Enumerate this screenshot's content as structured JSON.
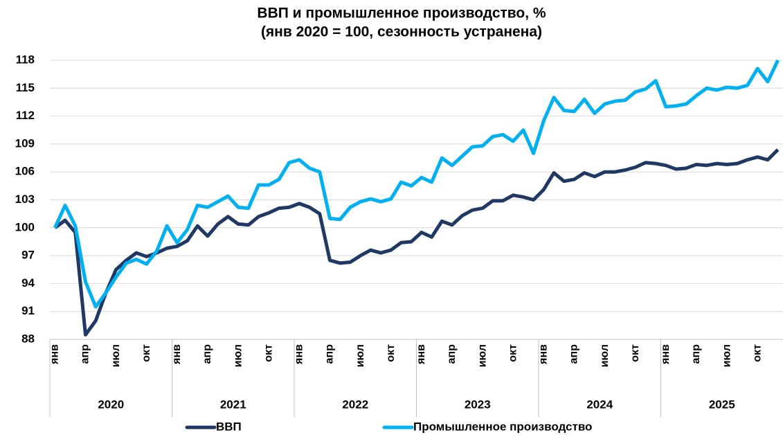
{
  "chart_data": {
    "type": "line",
    "title": "ВВП и промышленное производство, %",
    "subtitle": "(янв 2020 = 100, сезонность устранена)",
    "categories": [
      "янв",
      null,
      null,
      "апр",
      null,
      null,
      "июл",
      null,
      null,
      "окт",
      null,
      null,
      "янв",
      null,
      null,
      "апр",
      null,
      null,
      "июл",
      null,
      null,
      "окт",
      null,
      null,
      "янв",
      null,
      null,
      "апр",
      null,
      null,
      "июл",
      null,
      null,
      "окт",
      null,
      null,
      "янв",
      null,
      null,
      "апр",
      null,
      null,
      "июл",
      null,
      null,
      "окт",
      null,
      null,
      "янв",
      null,
      null,
      "апр",
      null,
      null,
      "июл",
      null,
      null,
      "окт",
      null,
      null,
      "янв",
      null,
      null,
      "апр",
      null,
      null,
      "июл",
      null,
      null,
      "окт",
      null,
      null
    ],
    "x_groups": [
      "2020",
      "2021",
      "2022",
      "2023",
      "2024",
      "2025"
    ],
    "series": [
      {
        "name": "ВВП",
        "color": "#1f3864",
        "values": [
          100,
          100.8,
          99.5,
          88.5,
          90,
          93,
          95.5,
          96.5,
          97.3,
          96.9,
          97.3,
          97.8,
          98,
          98.6,
          100.2,
          99.1,
          100.4,
          101.2,
          100.4,
          100.3,
          101.2,
          101.6,
          102.1,
          102.2,
          102.6,
          102.2,
          101.5,
          96.5,
          96.2,
          96.3,
          97,
          97.6,
          97.3,
          97.6,
          98.4,
          98.5,
          99.5,
          99,
          100.7,
          100.3,
          101.3,
          101.9,
          102.1,
          102.9,
          102.9,
          103.5,
          103.3,
          103,
          104.1,
          105.9,
          105,
          105.2,
          105.9,
          105.5,
          106,
          106,
          106.2,
          106.5,
          107,
          106.9,
          106.7,
          106.3,
          106.4,
          106.8,
          106.7,
          106.9,
          106.8,
          106.9,
          107.3,
          107.6,
          107.3,
          108.4
        ]
      },
      {
        "name": "Промышленное производство",
        "color": "#00b0f0",
        "values": [
          100,
          102.4,
          100.2,
          94.2,
          91.5,
          93,
          94.7,
          96.2,
          96.6,
          96.1,
          97.5,
          100.2,
          98.4,
          99.8,
          102.4,
          102.2,
          102.8,
          103.4,
          102.2,
          102.1,
          104.6,
          104.6,
          105.2,
          107,
          107.3,
          106.4,
          106,
          101,
          100.9,
          102.2,
          102.8,
          103.1,
          102.8,
          103.1,
          104.9,
          104.5,
          105.4,
          104.9,
          107.5,
          106.7,
          107.7,
          108.7,
          108.8,
          109.8,
          110,
          109.3,
          110.5,
          108,
          111.5,
          114,
          112.6,
          112.5,
          113.8,
          112.3,
          113.3,
          113.6,
          113.7,
          114.6,
          114.9,
          115.8,
          113,
          113.1,
          113.3,
          114.2,
          115,
          114.8,
          115.1,
          115,
          115.3,
          117.1,
          115.7,
          118
        ]
      }
    ],
    "ylim": [
      88,
      118
    ],
    "yticks": [
      88,
      91,
      94,
      97,
      100,
      103,
      106,
      109,
      112,
      115,
      118
    ],
    "grid": true,
    "legend": "bottom"
  }
}
